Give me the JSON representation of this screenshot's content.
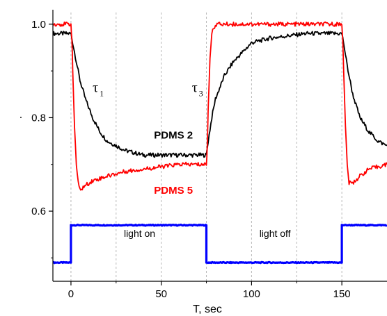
{
  "chart_data": {
    "type": "line",
    "xlabel": "T, sec",
    "ylabel": ".",
    "xlim": [
      -10,
      175
    ],
    "ylim": [
      0.45,
      1.025
    ],
    "x_ticks": [
      0,
      50,
      100,
      150
    ],
    "y_ticks": [
      0.6,
      0.8,
      1.0
    ],
    "y_tick_labels": [
      "0.6",
      "0.8",
      "1.0"
    ],
    "grid": "vertical dashed at 0, 25, 50, 75, 100, 125, 150",
    "series": [
      {
        "name": "PDMS 2",
        "color": "#000000",
        "x": [
          -10,
          0,
          1,
          3,
          5,
          8,
          12,
          16,
          20,
          25,
          30,
          35,
          40,
          50,
          60,
          70,
          75,
          76,
          78,
          80,
          85,
          90,
          95,
          100,
          110,
          120,
          130,
          140,
          148,
          150,
          151,
          153,
          156,
          160,
          165,
          170,
          175
        ],
        "y": [
          0.98,
          0.98,
          0.96,
          0.92,
          0.88,
          0.84,
          0.8,
          0.77,
          0.75,
          0.74,
          0.73,
          0.725,
          0.72,
          0.72,
          0.72,
          0.72,
          0.72,
          0.75,
          0.8,
          0.84,
          0.89,
          0.92,
          0.94,
          0.96,
          0.97,
          0.975,
          0.98,
          0.98,
          0.98,
          0.98,
          0.96,
          0.91,
          0.85,
          0.8,
          0.77,
          0.75,
          0.74
        ]
      },
      {
        "name": "PDMS 5",
        "color": "#ff0000",
        "x": [
          -10,
          0,
          0.5,
          1,
          2,
          3,
          4,
          5,
          8,
          12,
          20,
          30,
          40,
          50,
          60,
          70,
          75,
          75.5,
          76,
          77,
          78,
          80,
          90,
          100,
          120,
          140,
          150,
          150.5,
          151,
          152,
          153,
          154,
          156,
          160,
          165,
          170,
          175
        ],
        "y": [
          1.0,
          1.0,
          0.97,
          0.9,
          0.78,
          0.7,
          0.66,
          0.645,
          0.655,
          0.665,
          0.675,
          0.685,
          0.69,
          0.695,
          0.7,
          0.7,
          0.7,
          0.74,
          0.82,
          0.93,
          0.98,
          1.0,
          1.0,
          1.0,
          1.0,
          1.0,
          1.0,
          0.97,
          0.9,
          0.78,
          0.7,
          0.66,
          0.66,
          0.675,
          0.69,
          0.695,
          0.7
        ]
      },
      {
        "name": "light signal",
        "color": "#0000ff",
        "x": [
          -10,
          0,
          0,
          75,
          75,
          150,
          150,
          175
        ],
        "y": [
          0.49,
          0.49,
          0.57,
          0.57,
          0.49,
          0.49,
          0.57,
          0.57
        ]
      }
    ],
    "labels": [
      {
        "text": "PDMS 2",
        "x": 46,
        "y": 0.755,
        "color": "#000000"
      },
      {
        "text": "PDMS 5",
        "x": 46,
        "y": 0.637,
        "color": "#ff0000"
      },
      {
        "text": "light on",
        "x": 38,
        "y": 0.545,
        "color": "#000000"
      },
      {
        "text": "light off",
        "x": 113,
        "y": 0.545,
        "color": "#000000"
      }
    ],
    "tau_labels": [
      {
        "symbol": "τ",
        "sub": "1",
        "x": 12,
        "y": 0.855
      },
      {
        "symbol": "τ",
        "sub": "3",
        "x": 67,
        "y": 0.855
      }
    ]
  }
}
